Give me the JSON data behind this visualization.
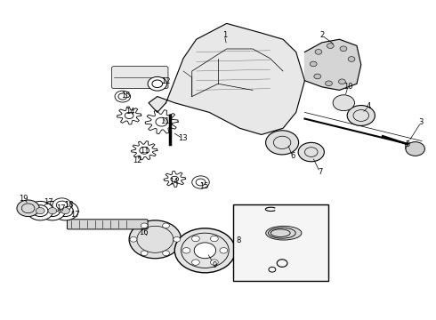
{
  "bg_color": "#ffffff",
  "label_color": "#000000",
  "line_color": "#000000"
}
